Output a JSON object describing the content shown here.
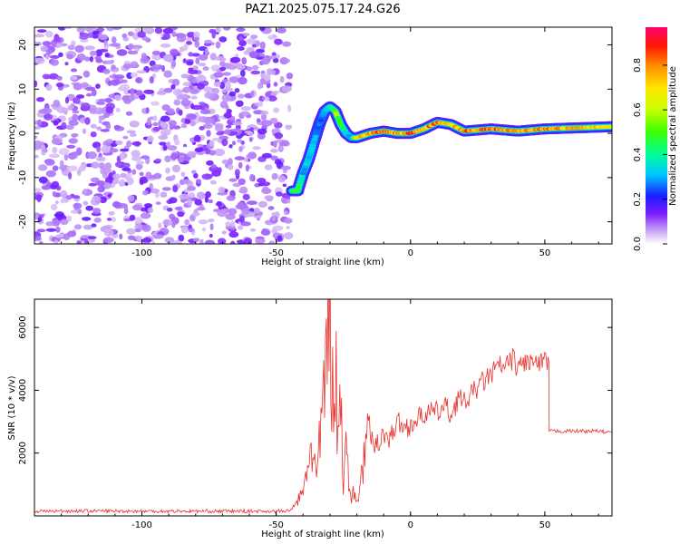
{
  "title": "PAZ1.2025.075.17.24.G26",
  "chart_data": [
    {
      "type": "heatmap",
      "xlabel": "Height of straight line (km)",
      "ylabel": "Frequency (Hz)",
      "xlim": [
        -140,
        75
      ],
      "ylim": [
        -25,
        24
      ],
      "x_ticks": [
        -100,
        -50,
        0,
        50
      ],
      "y_ticks": [
        -20,
        -10,
        0,
        10,
        20
      ],
      "colorbar": {
        "label": "Normalized spectral amplitude",
        "range": [
          0,
          0.97
        ],
        "ticks": [
          0.0,
          0.2,
          0.4,
          0.6,
          0.8
        ],
        "colors": [
          "#ffffff",
          "#b589f2",
          "#6a00ff",
          "#0018ff",
          "#00d8ff",
          "#00ff3c",
          "#b8ff00",
          "#ffee00",
          "#ff8800",
          "#ff0000",
          "#ff0066"
        ]
      },
      "noise_region": [
        -140,
        -45
      ],
      "ridge": {
        "x": [
          -44,
          -42,
          -40,
          -38,
          -36,
          -34,
          -32,
          -30,
          -28,
          -26,
          -24,
          -22,
          -20,
          -15,
          -10,
          -5,
          0,
          5,
          10,
          15,
          20,
          30,
          40,
          50,
          60,
          75
        ],
        "frequency": [
          -13,
          -13,
          -9,
          -6,
          -2,
          2,
          5,
          6,
          5,
          2,
          0,
          -1,
          -1,
          0,
          0.5,
          0,
          0,
          1,
          2.5,
          2,
          0.5,
          1,
          0.5,
          1,
          1.2,
          1.5
        ],
        "amplitude": [
          0.45,
          0.55,
          0.3,
          0.35,
          0.3,
          0.25,
          0.3,
          0.35,
          0.6,
          0.5,
          0.35,
          0.3,
          0.7,
          0.8,
          0.85,
          0.75,
          0.9,
          0.75,
          0.85,
          0.7,
          0.8,
          0.85,
          0.8,
          0.8,
          0.75,
          0.7
        ]
      }
    },
    {
      "type": "line",
      "xlabel": "Height of straight line (km)",
      "ylabel": "SNR (10 * v/v)",
      "xlim": [
        -140,
        75
      ],
      "ylim": [
        0,
        6900
      ],
      "x_ticks": [
        -100,
        -50,
        0,
        50
      ],
      "y_ticks": [
        2000,
        4000,
        6000
      ],
      "color": "#e8312b",
      "series": [
        {
          "x": [
            -140,
            -120,
            -100,
            -80,
            -60,
            -45,
            -40,
            -37,
            -35,
            -33,
            -31,
            -30,
            -29,
            -28,
            -27,
            -26,
            -25,
            -24,
            -23,
            -22,
            -21,
            -20,
            -19,
            -17,
            -15,
            -13,
            -10,
            -8,
            -5,
            -2,
            0,
            3,
            6,
            10,
            13,
            15,
            18,
            20,
            23,
            26,
            30,
            33,
            35,
            38,
            40,
            42,
            45,
            48,
            50,
            51.5,
            51.6,
            55,
            60,
            65,
            70,
            75
          ],
          "y": [
            150,
            160,
            150,
            150,
            150,
            150,
            700,
            2300,
            1200,
            3000,
            5600,
            6500,
            3800,
            5200,
            2200,
            4200,
            1100,
            3500,
            800,
            600,
            700,
            400,
            900,
            2000,
            2500,
            2200,
            2700,
            2400,
            3000,
            2800,
            2900,
            3100,
            3300,
            3300,
            3500,
            3200,
            3800,
            3600,
            3900,
            4200,
            4500,
            4800,
            4700,
            5000,
            4700,
            4900,
            4900,
            4800,
            4900,
            4900,
            2700,
            2700,
            2700,
            2700,
            2700,
            2650
          ]
        }
      ]
    }
  ]
}
